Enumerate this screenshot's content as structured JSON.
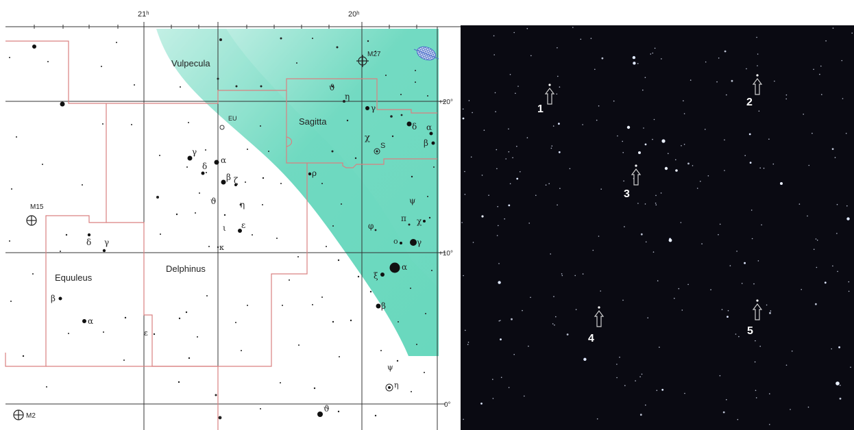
{
  "chart": {
    "ra_labels": {
      "ra21": "21ʰ",
      "ra20": "20ʰ"
    },
    "dec_labels": {
      "dec20": "+20°",
      "dec10": "+10°",
      "dec0": "0°"
    },
    "constellations": {
      "vulpecula": "Vulpecula",
      "sagitta": "Sagitta",
      "delphinus": "Delphinus",
      "equuleus": "Equuleus"
    },
    "objects": {
      "m27": "M27",
      "m15": "M15",
      "m2": "M2",
      "eu": "EU",
      "s": "S"
    },
    "greek": {
      "theta": "ϑ",
      "eta": "η",
      "gamma": "γ",
      "delta": "δ",
      "alpha": "α",
      "beta": "β",
      "chi": "χ",
      "zeta": "ζ",
      "epsilon": "ε",
      "iota": "ι",
      "kappa": "κ",
      "rho": "ρ",
      "psi": "ψ",
      "phi": "φ",
      "pi": "π",
      "omicron": "ο",
      "xi": "ξ",
      "eta1": "η",
      "theta_bottom": "ϑ",
      "psi_bottom": "ψ"
    },
    "colors": {
      "milky_way": "#63d6bb",
      "boundary": "#d98080",
      "grid": "#333333"
    }
  },
  "photo": {
    "markers": {
      "m1": "1",
      "m2": "2",
      "m3": "3",
      "m4": "4",
      "m5": "5"
    },
    "colors": {
      "background": "#0a0a12",
      "arrow": "#cfcfcf"
    }
  }
}
